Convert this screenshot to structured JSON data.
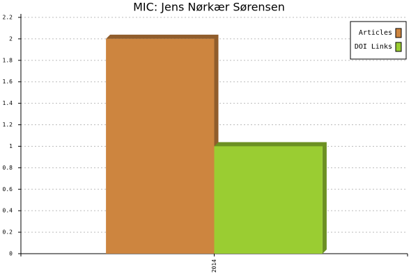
{
  "chart_data": {
    "type": "bar",
    "title": "MIC: Jens Nørkær Sørensen",
    "categories": [
      "2014"
    ],
    "series": [
      {
        "name": "Articles",
        "color": "#cd853f",
        "values": [
          2
        ]
      },
      {
        "name": "DOI Links",
        "color": "#9acd32",
        "values": [
          1
        ]
      }
    ],
    "ylim": [
      0,
      2.2
    ],
    "yticks": [
      0,
      0.2,
      0.4,
      0.6,
      0.8,
      1,
      1.2,
      1.4,
      1.6,
      1.8,
      2,
      2.2
    ],
    "grid": true,
    "legend": "upper-right"
  }
}
